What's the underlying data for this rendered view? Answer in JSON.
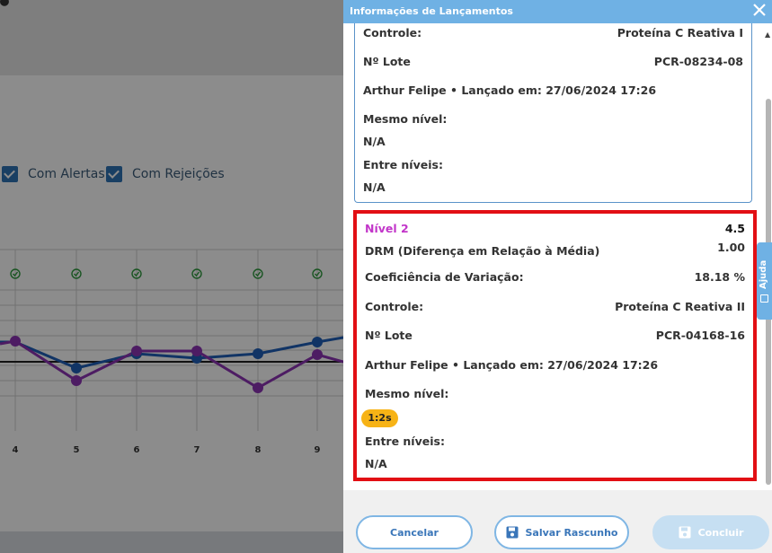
{
  "background": {
    "filters": [
      {
        "label": "Com Alertas",
        "checked": true
      },
      {
        "label": "Com Rejeições",
        "checked": true
      }
    ],
    "chart": {
      "x_labels": [
        "4",
        "5",
        "6",
        "7",
        "8",
        "9"
      ],
      "status_icon": "check-circle-icon"
    }
  },
  "panel": {
    "title": "Informações de Lançamentos",
    "close_icon": "close-icon",
    "card1": {
      "controle_label": "Controle:",
      "controle_value": "Proteína C Reativa I",
      "lote_label": "Nº Lote",
      "lote_value": "PCR-08234-08",
      "launched": "Arthur Felipe • Lançado em: 27/06/2024 17:26",
      "mesmo_label": "Mesmo nível:",
      "mesmo_value": "N/A",
      "entre_label": "Entre níveis:",
      "entre_value": "N/A"
    },
    "card2": {
      "nivel_label": "Nível 2",
      "nivel_value": "4.5",
      "drm_label": "DRM (Diferença em Relação à Média)",
      "drm_value": "1.00",
      "cv_label": "Coeficiência de Variação:",
      "cv_value": "18.18 %",
      "controle_label": "Controle:",
      "controle_value": "Proteína C Reativa II",
      "lote_label": "Nº Lote",
      "lote_value": "PCR-04168-16",
      "launched": "Arthur Felipe • Lançado em: 27/06/2024 17:26",
      "mesmo_label": "Mesmo nível:",
      "mesmo_badge": "1:2s",
      "entre_label": "Entre níveis:",
      "entre_value": "N/A"
    },
    "help_tab": "Ajuda",
    "buttons": {
      "cancel": "Cancelar",
      "draft": "Salvar Rascunho",
      "finish": "Concluir"
    }
  },
  "colors": {
    "header": "#6fb1e4",
    "highlight_border": "#e20f14",
    "nivel_text": "#c235c9",
    "badge": "#f7b316",
    "series_blue": "#1f5fb8",
    "series_purple": "#8c33b5"
  }
}
